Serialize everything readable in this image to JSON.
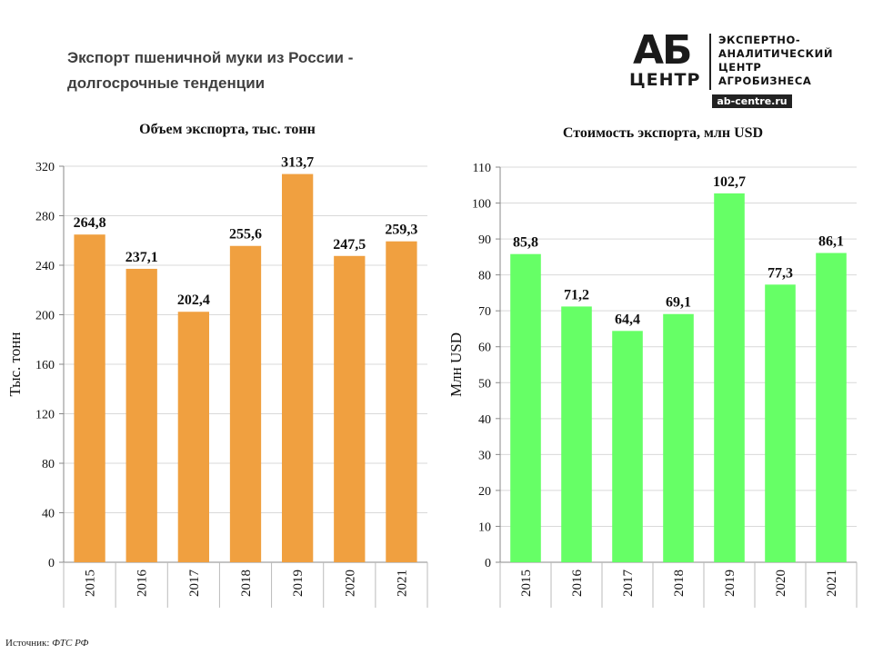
{
  "title": {
    "line1": "Экспорт пшеничной муки из России -",
    "line2": "долгосрочные  тенденции"
  },
  "logo": {
    "big": "АБ",
    "small": "ЦЕНТР",
    "lines": [
      "ЭКСПЕРТНО-",
      "АНАЛИТИЧЕСКИЙ",
      "ЦЕНТР",
      "АГРОБИЗНЕСА"
    ],
    "site": "ab-centre.ru"
  },
  "source": {
    "label": "Источник:",
    "value": "ФТС РФ"
  },
  "chart_data": [
    {
      "type": "bar",
      "title": "Объем экспорта, тыс. тонн",
      "ylabel": "Тыс. тонн",
      "xlabel": "",
      "categories": [
        "2015",
        "2016",
        "2017",
        "2018",
        "2019",
        "2020",
        "2021"
      ],
      "values": [
        264.8,
        237.1,
        202.4,
        255.6,
        313.7,
        247.5,
        259.3
      ],
      "value_labels": [
        "264,8",
        "237,1",
        "202,4",
        "255,6",
        "313,7",
        "247,5",
        "259,3"
      ],
      "ylim": [
        0,
        320
      ],
      "yticks": [
        0,
        40,
        80,
        120,
        160,
        200,
        240,
        280,
        320
      ],
      "grid": true,
      "color": "#f0a040"
    },
    {
      "type": "bar",
      "title": "Стоимость экспорта, млн USD",
      "ylabel": "Млн USD",
      "xlabel": "",
      "categories": [
        "2015",
        "2016",
        "2017",
        "2018",
        "2019",
        "2020",
        "2021"
      ],
      "values": [
        85.8,
        71.2,
        64.4,
        69.1,
        102.7,
        77.3,
        86.1
      ],
      "value_labels": [
        "85,8",
        "71,2",
        "64,4",
        "69,1",
        "102,7",
        "77,3",
        "86,1"
      ],
      "ylim": [
        0,
        110
      ],
      "yticks": [
        0,
        10,
        20,
        30,
        40,
        50,
        60,
        70,
        80,
        90,
        100,
        110
      ],
      "grid": true,
      "color": "#66ff66"
    }
  ]
}
